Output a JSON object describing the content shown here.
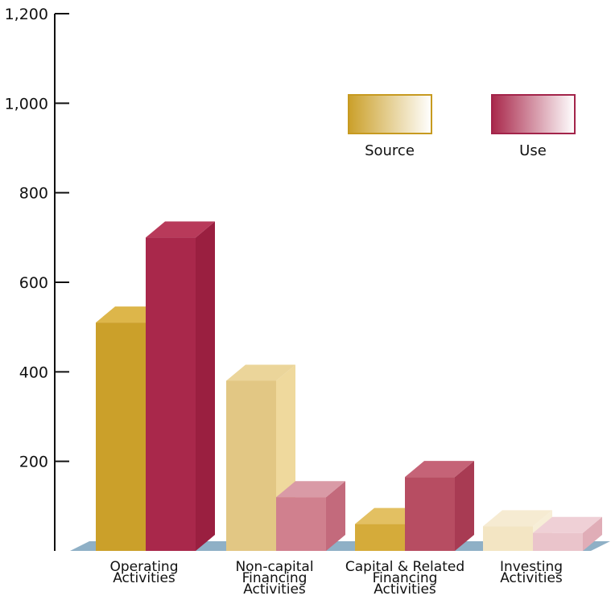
{
  "chart_data": {
    "type": "bar",
    "title": "",
    "xlabel": "",
    "ylabel": "",
    "ylim": [
      0,
      1200
    ],
    "yticks": [
      {
        "value": 200,
        "label": "200"
      },
      {
        "value": 400,
        "label": "400"
      },
      {
        "value": 600,
        "label": "600"
      },
      {
        "value": 800,
        "label": "800"
      },
      {
        "value": 1000,
        "label": "1,000"
      },
      {
        "value": 1200,
        "label": "1,200"
      }
    ],
    "grid": false,
    "legend_position": "top-right",
    "categories": [
      {
        "name": "operating",
        "label_lines": [
          "Operating",
          "Activities"
        ]
      },
      {
        "name": "noncapital",
        "label_lines": [
          "Non-capital",
          "Financing",
          "Activities"
        ]
      },
      {
        "name": "capital",
        "label_lines": [
          "Capital & Related",
          "Financing",
          "Activities"
        ]
      },
      {
        "name": "investing",
        "label_lines": [
          "Investing",
          "Activities"
        ]
      }
    ],
    "series": [
      {
        "name": "Source",
        "values": [
          510,
          380,
          60,
          55
        ],
        "colors": [
          "#cba02a",
          "#e2c784",
          "#d5ab3a",
          "#f3e5c3"
        ],
        "side_colors": [
          "#dfba47",
          "#efd99d",
          "#e5c15a",
          "#f7eed7"
        ],
        "top_colors": [
          "#ddb64a",
          "#ebd59a",
          "#e3c062",
          "#f6ebd2"
        ]
      },
      {
        "name": "Use",
        "values": [
          700,
          120,
          165,
          40
        ],
        "colors": [
          "#a9284b",
          "#d0808e",
          "#b74d62",
          "#eac4cb"
        ],
        "side_colors": [
          "#9a1f40",
          "#c36a7c",
          "#a83b53",
          "#e0adb7"
        ],
        "top_colors": [
          "#b83a5a",
          "#d99aa6",
          "#c56377",
          "#efd0d6"
        ]
      }
    ],
    "legend": {
      "source_label": "Source",
      "use_label": "Use",
      "source_color": "#cba02a",
      "use_color": "#a9284b"
    },
    "floor_color": "#8fb0c6",
    "axis_color": "#111111"
  }
}
